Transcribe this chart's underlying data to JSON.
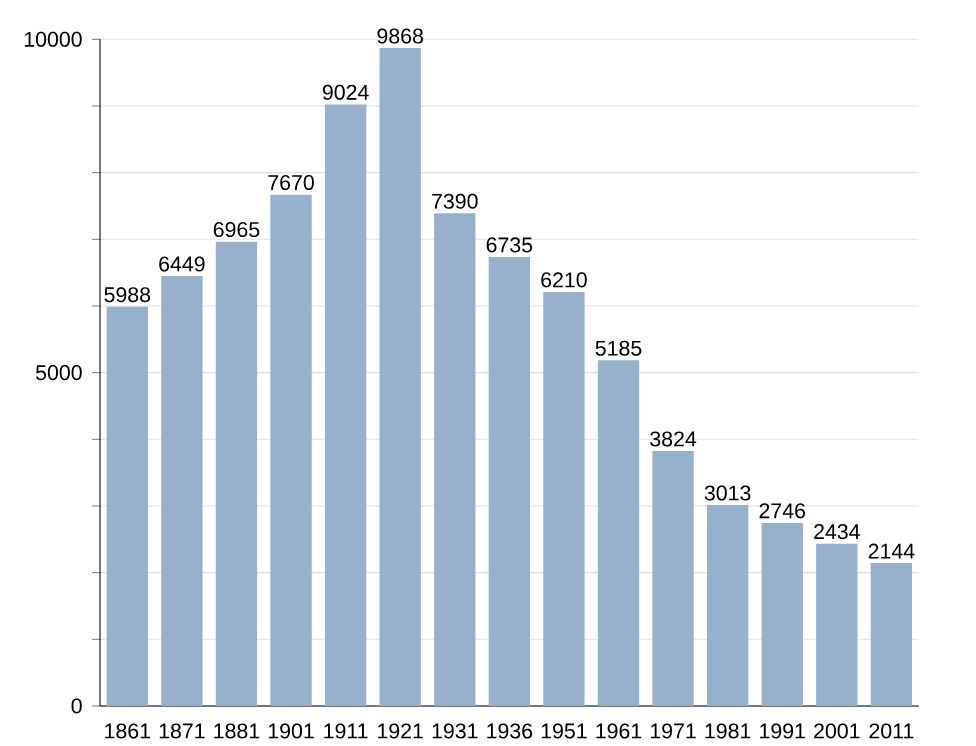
{
  "chart_data": {
    "type": "bar",
    "categories": [
      "1861",
      "1871",
      "1881",
      "1901",
      "1911",
      "1921",
      "1931",
      "1936",
      "1951",
      "1961",
      "1971",
      "1981",
      "1991",
      "2001",
      "2011"
    ],
    "values": [
      5988,
      6449,
      6965,
      7670,
      9024,
      9868,
      7390,
      6735,
      6210,
      5185,
      3824,
      3013,
      2746,
      2434,
      2144
    ],
    "color": "#97b0cb",
    "data_labels": true,
    "grid": "y",
    "ylim": [
      0,
      10000
    ],
    "yticks": [
      0,
      {
        "value": 1000,
        "label": null
      },
      {
        "value": 2000,
        "label": null
      },
      {
        "value": 3000,
        "label": null
      },
      {
        "value": 4000,
        "label": null
      },
      5000,
      {
        "value": 6000,
        "label": null
      },
      {
        "value": 7000,
        "label": null
      },
      {
        "value": 8000,
        "label": null
      },
      {
        "value": 9000,
        "label": null
      },
      10000
    ]
  }
}
